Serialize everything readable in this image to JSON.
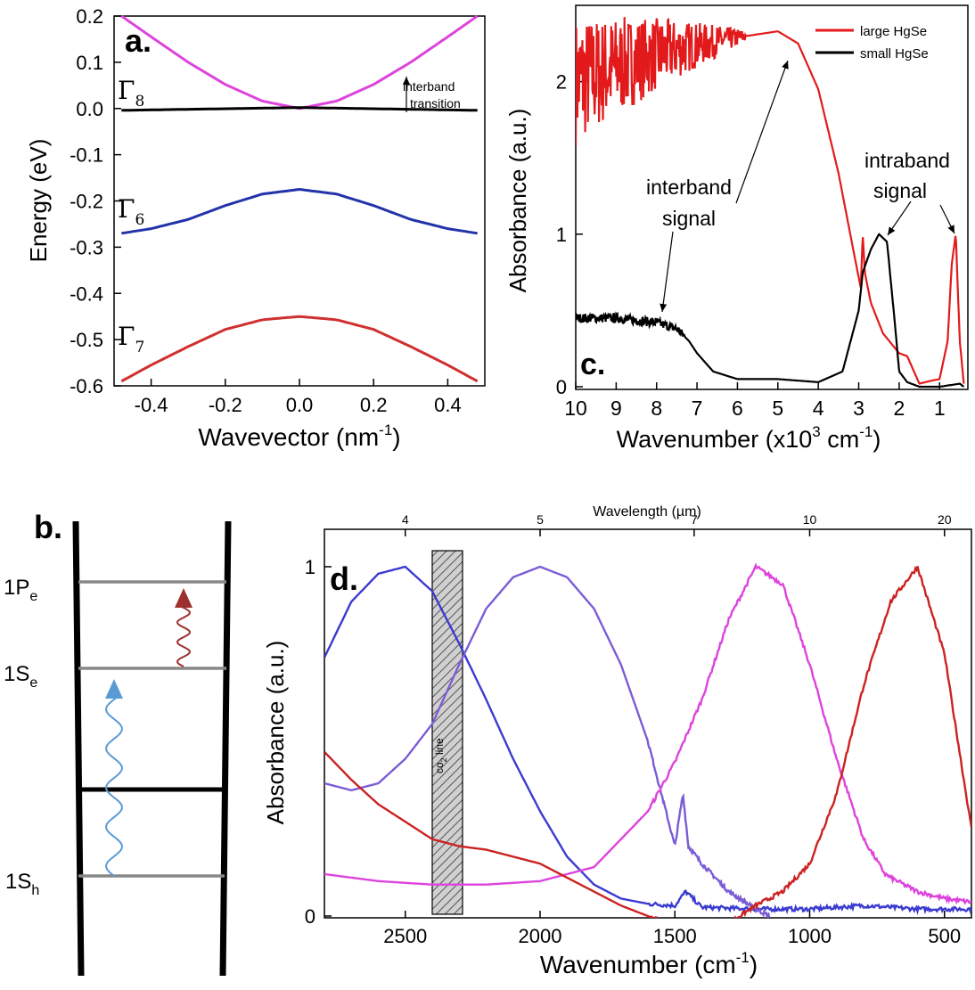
{
  "figure": {
    "panel_a": {
      "label": "a.",
      "xlabel": "Wavevector (nm",
      "xlabel_sup": "-1",
      "xlabel_close": ")",
      "ylabel": "Energy (eV)",
      "annotation_line1": "interband",
      "annotation_line2": "transition",
      "band_labels": [
        {
          "base": "Γ",
          "sub": "8",
          "color": "#000000"
        },
        {
          "base": "Γ",
          "sub": "6",
          "color": "#000000"
        },
        {
          "base": "Γ",
          "sub": "7",
          "color": "#000000"
        }
      ],
      "xticks": [
        "-0.4",
        "-0.2",
        "0.0",
        "0.2",
        "0.4"
      ],
      "yticks": [
        "0.2",
        "0.1",
        "0.0",
        "-0.1",
        "-0.2",
        "-0.3",
        "-0.4",
        "-0.5",
        "-0.6"
      ]
    },
    "panel_b": {
      "label": "b.",
      "levels": [
        {
          "base": "1P",
          "sub": "e"
        },
        {
          "base": "1S",
          "sub": "e"
        },
        {
          "base": "1S",
          "sub": "h"
        }
      ],
      "colors": {
        "interband_arrow": "#5b9bd5",
        "intraband_arrow": "#9e3030"
      }
    },
    "panel_c": {
      "label": "c.",
      "xlabel": "Wavenumber (x10",
      "xlabel_sup1": "3",
      "xlabel_mid": " cm",
      "xlabel_sup2": "-1",
      "xlabel_close": ")",
      "ylabel": "Absorbance (a.u.)",
      "legend": [
        {
          "name": "large HgSe",
          "color": "#e31a1c"
        },
        {
          "name": "small HgSe",
          "color": "#000000"
        }
      ],
      "annotation_interband_1": "interband",
      "annotation_interband_2": "signal",
      "annotation_intraband_1": "intraband",
      "annotation_intraband_2": "signal",
      "xticks": [
        "10",
        "9",
        "8",
        "7",
        "6",
        "5",
        "4",
        "3",
        "2",
        "1"
      ],
      "yticks": [
        "2",
        "1",
        "0"
      ]
    },
    "panel_d": {
      "label": "d.",
      "top_axis_label": "Wavelength (µm)",
      "top_ticks": [
        "4",
        "5",
        "7",
        "10",
        "20"
      ],
      "xlabel": "Wavenumber (cm",
      "xlabel_sup": "-1",
      "xlabel_close": ")",
      "ylabel": "Absorbance (a.u.)",
      "co2_label": "co",
      "co2_sub": "2",
      "co2_label_end": " line",
      "xticks": [
        "2500",
        "2000",
        "1500",
        "1000",
        "500"
      ],
      "yticks": [
        "1",
        "0"
      ]
    }
  },
  "chart_data": [
    {
      "type": "line",
      "panel": "a",
      "xlabel": "Wavevector (nm-1)",
      "ylabel": "Energy (eV)",
      "xlim": [
        -0.5,
        0.5
      ],
      "ylim": [
        -0.6,
        0.2
      ],
      "series": [
        {
          "name": "Γ8",
          "color": "#dd44dd",
          "x": [
            -0.48,
            -0.4,
            -0.3,
            -0.2,
            -0.1,
            0.0,
            0.1,
            0.2,
            0.3,
            0.4,
            0.48
          ],
          "y": [
            0.2,
            0.155,
            0.1,
            0.052,
            0.016,
            0.0,
            0.016,
            0.052,
            0.1,
            0.155,
            0.2
          ]
        },
        {
          "name": "Γ8",
          "color": "#000000",
          "x": [
            -0.48,
            -0.24,
            0.0,
            0.24,
            0.48
          ],
          "y": [
            -0.004,
            -0.001,
            0.002,
            -0.001,
            -0.004
          ]
        },
        {
          "name": "Γ6",
          "color": "#2233aa",
          "x": [
            -0.48,
            -0.4,
            -0.3,
            -0.2,
            -0.1,
            0.0,
            0.1,
            0.2,
            0.3,
            0.4,
            0.48
          ],
          "y": [
            -0.27,
            -0.26,
            -0.24,
            -0.21,
            -0.185,
            -0.175,
            -0.185,
            -0.21,
            -0.24,
            -0.26,
            -0.27
          ]
        },
        {
          "name": "Γ7",
          "color": "#d03030",
          "x": [
            -0.48,
            -0.4,
            -0.3,
            -0.2,
            -0.1,
            0.0,
            0.1,
            0.2,
            0.3,
            0.4,
            0.48
          ],
          "y": [
            -0.59,
            -0.555,
            -0.515,
            -0.478,
            -0.457,
            -0.45,
            -0.457,
            -0.478,
            -0.515,
            -0.555,
            -0.59
          ]
        }
      ]
    },
    {
      "type": "line",
      "panel": "c",
      "xlabel": "Wavenumber (x10^3 cm-1)",
      "ylabel": "Absorbance (a.u.)",
      "xlim": [
        10,
        0.3
      ],
      "ylim": [
        0,
        2.5
      ],
      "series": [
        {
          "name": "large HgSe",
          "color": "#e31a1c",
          "x": [
            10,
            9,
            8,
            7,
            6,
            5.5,
            5.0,
            4.5,
            4.0,
            3.5,
            3.1,
            2.95,
            2.9,
            2.85,
            2.7,
            2.4,
            2.0,
            1.8,
            1.5,
            1.2,
            1.0,
            0.8,
            0.7,
            0.6,
            0.5,
            0.4
          ],
          "y": [
            2.0,
            2.1,
            2.18,
            2.24,
            2.29,
            2.31,
            2.33,
            2.25,
            1.95,
            1.4,
            0.85,
            0.65,
            1.0,
            0.75,
            0.55,
            0.35,
            0.22,
            0.2,
            0.02,
            0.04,
            0.05,
            0.3,
            0.8,
            1.0,
            0.3,
            0.02
          ]
        },
        {
          "name": "small HgSe",
          "color": "#000000",
          "x": [
            10,
            9,
            8,
            7.5,
            7.2,
            7.0,
            6.6,
            6.0,
            5.0,
            4.0,
            3.4,
            3.0,
            2.9,
            2.7,
            2.5,
            2.3,
            2.1,
            2.0,
            1.8,
            1.5,
            1.0,
            0.5,
            0.4
          ],
          "y": [
            0.45,
            0.45,
            0.42,
            0.38,
            0.3,
            0.22,
            0.1,
            0.05,
            0.05,
            0.03,
            0.1,
            0.5,
            0.75,
            0.9,
            1.0,
            0.95,
            0.4,
            0.1,
            0.03,
            0.0,
            0.0,
            0.02,
            0.0
          ]
        }
      ]
    },
    {
      "type": "line",
      "panel": "d",
      "xlabel": "Wavenumber (cm-1)",
      "ylabel": "Absorbance (a.u.)",
      "xlim": [
        2800,
        400
      ],
      "ylim": [
        0,
        1
      ],
      "series": [
        {
          "color": "#3b3bd0",
          "x": [
            2800,
            2700,
            2600,
            2500,
            2400,
            2300,
            2200,
            2100,
            2000,
            1900,
            1800,
            1700,
            1600,
            1500,
            1460,
            1400,
            1200,
            1000,
            800,
            600,
            400
          ],
          "y": [
            0.74,
            0.9,
            0.98,
            1.0,
            0.93,
            0.78,
            0.62,
            0.45,
            0.3,
            0.17,
            0.09,
            0.05,
            0.035,
            0.03,
            0.07,
            0.025,
            0.02,
            0.02,
            0.03,
            0.02,
            0.02
          ]
        },
        {
          "color": "#7b5cd6",
          "x": [
            2800,
            2700,
            2600,
            2500,
            2400,
            2300,
            2200,
            2100,
            2000,
            1900,
            1800,
            1700,
            1600,
            1500,
            1470,
            1450,
            1400,
            1300,
            1200,
            1150
          ],
          "y": [
            0.38,
            0.36,
            0.38,
            0.45,
            0.55,
            0.72,
            0.88,
            0.97,
            1.0,
            0.97,
            0.88,
            0.72,
            0.5,
            0.2,
            0.35,
            0.2,
            0.15,
            0.07,
            0.02,
            0.0
          ]
        },
        {
          "color": "#dd44dd",
          "x": [
            2800,
            2600,
            2400,
            2200,
            2000,
            1800,
            1600,
            1500,
            1400,
            1300,
            1200,
            1100,
            1000,
            900,
            800,
            720,
            700,
            600,
            500,
            400
          ],
          "y": [
            0.12,
            0.1,
            0.09,
            0.09,
            0.1,
            0.14,
            0.3,
            0.44,
            0.62,
            0.85,
            1.0,
            0.95,
            0.72,
            0.45,
            0.22,
            0.12,
            0.11,
            0.07,
            0.05,
            0.04
          ]
        },
        {
          "color": "#cc2222",
          "x": [
            2800,
            2700,
            2600,
            2500,
            2400,
            2300,
            2200,
            2100,
            2000,
            1900,
            1800,
            1700,
            1600,
            1500,
            1400,
            1300,
            1200,
            1100,
            1000,
            900,
            800,
            700,
            600,
            500,
            400
          ],
          "y": [
            0.47,
            0.39,
            0.32,
            0.27,
            0.22,
            0.2,
            0.19,
            0.17,
            0.15,
            0.11,
            0.07,
            0.03,
            0.0,
            -0.03,
            -0.04,
            -0.02,
            0.03,
            0.07,
            0.15,
            0.35,
            0.66,
            0.9,
            1.0,
            0.75,
            0.25
          ]
        }
      ],
      "shaded_band": {
        "x": [
          2400,
          2280
        ],
        "label": "co2 line"
      }
    }
  ]
}
